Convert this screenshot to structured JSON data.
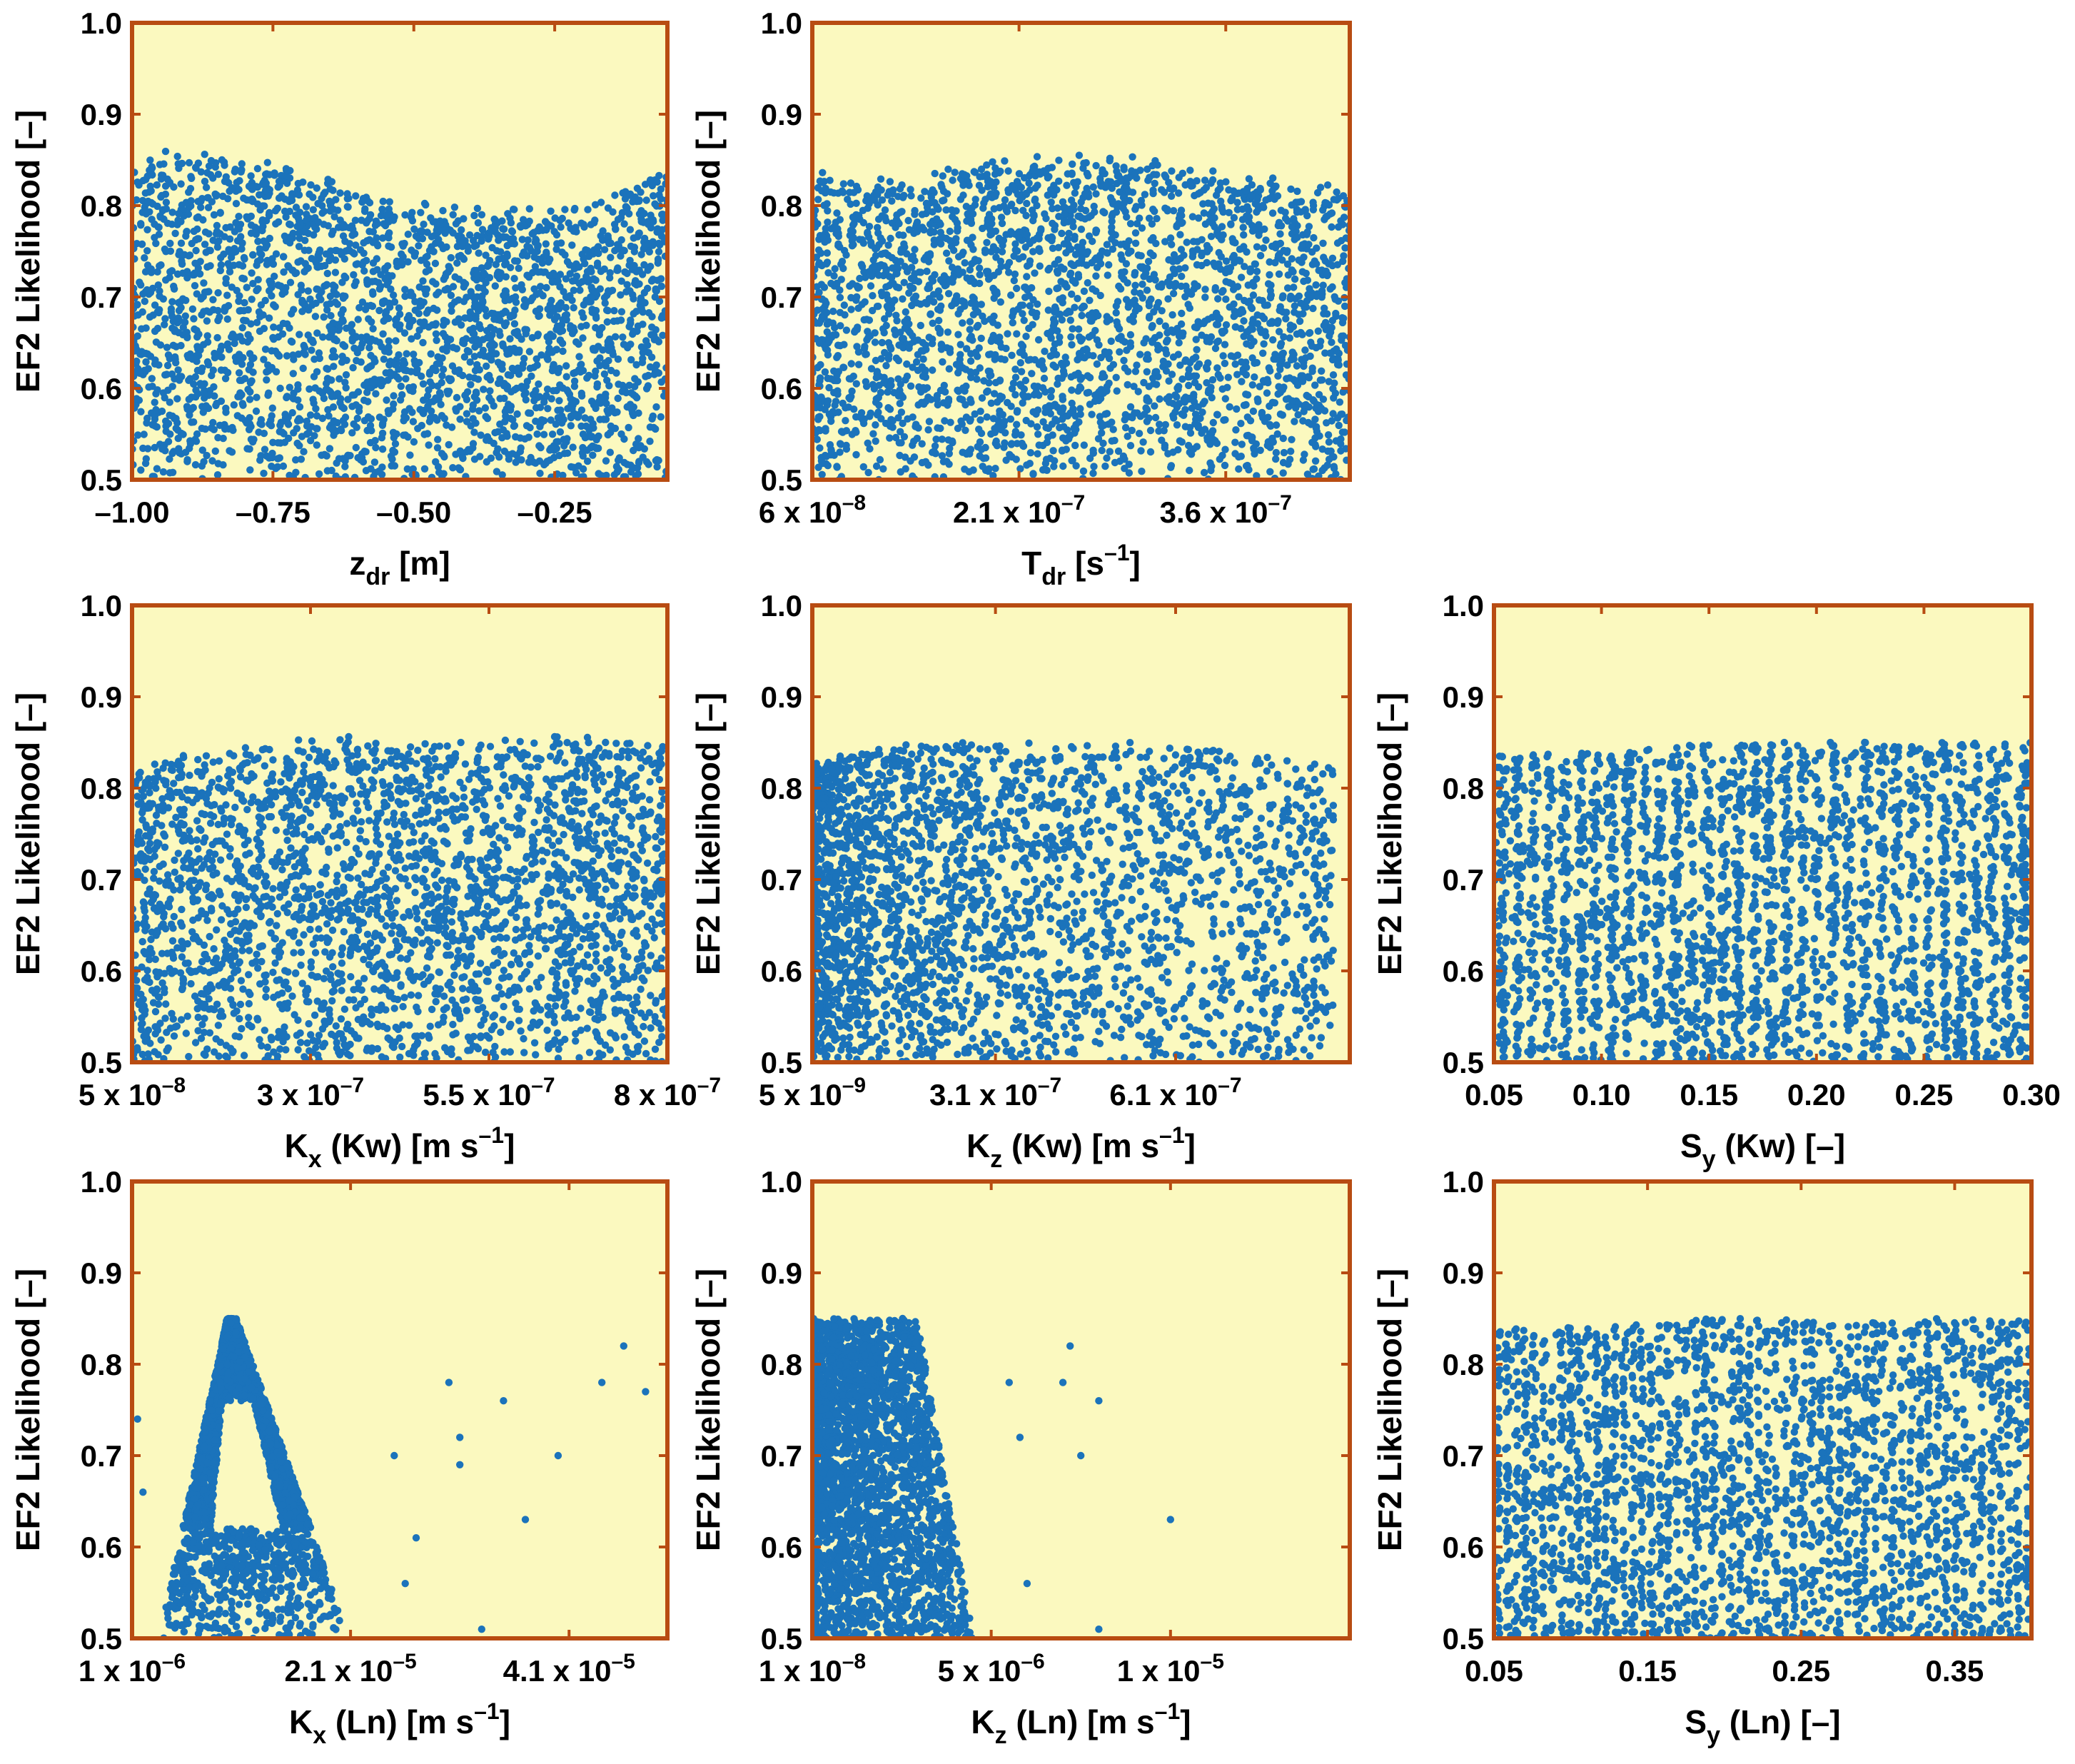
{
  "figure": {
    "style": {
      "plot_background": "#fbf9bf",
      "frame_color": "#b84c12",
      "marker_color": "#1b73bb"
    }
  },
  "chart_data": [
    {
      "id": "zdr",
      "type": "scatter",
      "ylabel": "EF2 Likelihood [–]",
      "ylim": [
        0.5,
        1.0
      ],
      "y_ticks": [
        "0.5",
        "0.6",
        "0.7",
        "0.8",
        "0.9",
        "1.0"
      ],
      "xlabel_main": "z",
      "xlabel_sub": "dr",
      "xlabel_after": " [m]",
      "xlim": [
        -1.0,
        -0.05
      ],
      "x_ticks": [
        {
          "value": -1.0,
          "label": "–1.00"
        },
        {
          "value": -0.75,
          "label": "–0.75"
        },
        {
          "value": -0.5,
          "label": "–0.50"
        },
        {
          "value": -0.25,
          "label": "–0.25"
        }
      ],
      "points": {
        "shape": "uniform",
        "count": 2800,
        "y_top_profile": [
          0.85,
          0.85,
          0.83,
          0.8,
          0.79,
          0.79,
          0.84
        ],
        "description": "dense uniform scatter, upper envelope ~0.78–0.85"
      }
    },
    {
      "id": "tdr",
      "type": "scatter",
      "ylabel": "EF2 Likelihood [–]",
      "ylim": [
        0.5,
        1.0
      ],
      "y_ticks": [
        "0.5",
        "0.6",
        "0.7",
        "0.8",
        "0.9",
        "1.0"
      ],
      "xlabel_main": "T",
      "xlabel_sub": "dr",
      "xlabel_after": " [s",
      "xlabel_sup": "–1",
      "xlabel_end": "]",
      "xlim": [
        6e-08,
        4.5e-07
      ],
      "x_ticks": [
        {
          "value": 6e-08,
          "label": "6 x 10",
          "exp": "–8"
        },
        {
          "value": 2.1e-07,
          "label": "2.1 x 10",
          "exp": "–7"
        },
        {
          "value": 3.6e-07,
          "label": "3.6 x 10",
          "exp": "–7"
        }
      ],
      "points": {
        "shape": "uniform",
        "count": 2800,
        "y_top_profile": [
          0.83,
          0.83,
          0.85,
          0.85,
          0.83,
          0.81
        ],
        "description": "dense uniform scatter, upper envelope ~0.81–0.85"
      }
    },
    {
      "id": "kx_kw",
      "type": "scatter",
      "ylabel": "EF2 Likelihood [–]",
      "ylim": [
        0.5,
        1.0
      ],
      "y_ticks": [
        "0.5",
        "0.6",
        "0.7",
        "0.8",
        "0.9",
        "1.0"
      ],
      "xlabel_main": "K",
      "xlabel_sub": "x",
      "xlabel_after": " (Kw) [m s",
      "xlabel_sup": "–1",
      "xlabel_end": "]",
      "xlim": [
        5e-08,
        8e-07
      ],
      "x_ticks": [
        {
          "value": 5e-08,
          "label": "5 x 10",
          "exp": "–8"
        },
        {
          "value": 3e-07,
          "label": "3 x 10",
          "exp": "–7"
        },
        {
          "value": 5.5e-07,
          "label": "5.5 x 10",
          "exp": "–7"
        },
        {
          "value": 8e-07,
          "label": "8 x 10",
          "exp": "–7"
        }
      ],
      "points": {
        "shape": "uniform",
        "count": 2800,
        "y_top_profile": [
          0.82,
          0.84,
          0.85,
          0.85,
          0.85,
          0.85
        ],
        "description": "dense uniform scatter, upper envelope ~0.82–0.85"
      }
    },
    {
      "id": "kz_kw",
      "type": "scatter",
      "ylabel": "EF2 Likelihood [–]",
      "ylim": [
        0.5,
        1.0
      ],
      "y_ticks": [
        "0.5",
        "0.6",
        "0.7",
        "0.8",
        "0.9",
        "1.0"
      ],
      "xlabel_main": "K",
      "xlabel_sub": "z",
      "xlabel_after": " (Kw) [m s",
      "xlabel_sup": "–1",
      "xlabel_end": "]",
      "xlim": [
        5e-09,
        9e-07
      ],
      "x_ticks": [
        {
          "value": 5e-09,
          "label": "5 x 10",
          "exp": "–9"
        },
        {
          "value": 3.1e-07,
          "label": "3.1 x 10",
          "exp": "–7"
        },
        {
          "value": 6.1e-07,
          "label": "6.1 x 10",
          "exp": "–7"
        }
      ],
      "points": {
        "shape": "left_dense_decay",
        "count": 2800,
        "y_top_profile": [
          0.83,
          0.85,
          0.85,
          0.85,
          0.84,
          0.82
        ],
        "description": "densest at low Kz, thinning toward high Kz"
      }
    },
    {
      "id": "sy_kw",
      "type": "scatter",
      "ylabel": "EF2 Likelihood [–]",
      "ylim": [
        0.5,
        1.0
      ],
      "y_ticks": [
        "0.5",
        "0.6",
        "0.7",
        "0.8",
        "0.9",
        "1.0"
      ],
      "xlabel_main": "S",
      "xlabel_sub": "y",
      "xlabel_after": " (Kw) [–]",
      "xlim": [
        0.05,
        0.3
      ],
      "x_ticks": [
        {
          "value": 0.05,
          "label": "0.05"
        },
        {
          "value": 0.1,
          "label": "0.10"
        },
        {
          "value": 0.15,
          "label": "0.15"
        },
        {
          "value": 0.2,
          "label": "0.20"
        },
        {
          "value": 0.25,
          "label": "0.25"
        },
        {
          "value": 0.3,
          "label": "0.30"
        }
      ],
      "points": {
        "shape": "vertical_bands",
        "count": 2800,
        "bands": 34,
        "y_top_profile": [
          0.84,
          0.84,
          0.85,
          0.85,
          0.85,
          0.85
        ],
        "description": "scatter organized in vertical stripes"
      }
    },
    {
      "id": "kx_ln",
      "type": "scatter",
      "ylabel": "EF2 Likelihood [–]",
      "ylim": [
        0.5,
        1.0
      ],
      "y_ticks": [
        "0.5",
        "0.6",
        "0.7",
        "0.8",
        "0.9",
        "1.0"
      ],
      "xlabel_main": "K",
      "xlabel_sub": "x",
      "xlabel_after": " (Ln) [m s",
      "xlabel_sup": "–1",
      "xlabel_end": "]",
      "xlim": [
        1e-06,
        5e-05
      ],
      "x_ticks": [
        {
          "value": 1e-06,
          "label": "1 x 10",
          "exp": "–6"
        },
        {
          "value": 2.1e-05,
          "label": "2.1 x 10",
          "exp": "–5"
        },
        {
          "value": 4.1e-05,
          "label": "4.1 x 10",
          "exp": "–5"
        }
      ],
      "points": {
        "shape": "peak",
        "count": 2600,
        "peak_x": 1e-05,
        "peak_y": 0.85,
        "base_x_range": [
          3.5e-06,
          2.1e-05
        ],
        "hollow_center": true,
        "outliers": [
          {
            "x": 1.5e-06,
            "y": 0.74
          },
          {
            "x": 2e-06,
            "y": 0.66
          },
          {
            "x": 2.5e-05,
            "y": 0.7
          },
          {
            "x": 2.6e-05,
            "y": 0.56
          },
          {
            "x": 2.7e-05,
            "y": 0.61
          },
          {
            "x": 3e-05,
            "y": 0.78
          },
          {
            "x": 3.1e-05,
            "y": 0.72
          },
          {
            "x": 3.1e-05,
            "y": 0.69
          },
          {
            "x": 3.3e-05,
            "y": 0.51
          },
          {
            "x": 3.5e-05,
            "y": 0.76
          },
          {
            "x": 3.7e-05,
            "y": 0.63
          },
          {
            "x": 4e-05,
            "y": 0.7
          },
          {
            "x": 4.4e-05,
            "y": 0.78
          },
          {
            "x": 4.6e-05,
            "y": 0.82
          },
          {
            "x": 4.8e-05,
            "y": 0.77
          }
        ]
      }
    },
    {
      "id": "kz_ln",
      "type": "scatter",
      "ylabel": "EF2 Likelihood [–]",
      "ylim": [
        0.5,
        1.0
      ],
      "y_ticks": [
        "0.5",
        "0.6",
        "0.7",
        "0.8",
        "0.9",
        "1.0"
      ],
      "xlabel_main": "K",
      "xlabel_sub": "z",
      "xlabel_after": " (Ln) [m s",
      "xlabel_sup": "–1",
      "xlabel_end": "]",
      "xlim": [
        1e-08,
        1.5e-05
      ],
      "x_ticks": [
        {
          "value": 1e-08,
          "label": "1 x 10",
          "exp": "–8"
        },
        {
          "value": 5e-06,
          "label": "5 x 10",
          "exp": "–6"
        },
        {
          "value": 1e-05,
          "label": "1 x 10",
          "exp": "–5"
        }
      ],
      "points": {
        "shape": "left_block",
        "count": 2600,
        "block_x_range": [
          1e-08,
          4.5e-06
        ],
        "block_y_top": 0.85,
        "outliers": [
          {
            "x": 5.5e-06,
            "y": 0.78
          },
          {
            "x": 5.8e-06,
            "y": 0.72
          },
          {
            "x": 6e-06,
            "y": 0.56
          },
          {
            "x": 7e-06,
            "y": 0.78
          },
          {
            "x": 7.2e-06,
            "y": 0.82
          },
          {
            "x": 7.5e-06,
            "y": 0.7
          },
          {
            "x": 8e-06,
            "y": 0.76
          },
          {
            "x": 8e-06,
            "y": 0.51
          },
          {
            "x": 1e-05,
            "y": 0.63
          }
        ]
      }
    },
    {
      "id": "sy_ln",
      "type": "scatter",
      "ylabel": "EF2 Likelihood [–]",
      "ylim": [
        0.5,
        1.0
      ],
      "y_ticks": [
        "0.5",
        "0.6",
        "0.7",
        "0.8",
        "0.9",
        "1.0"
      ],
      "xlabel_main": "S",
      "xlabel_sub": "y",
      "xlabel_after": " (Ln) [–]",
      "xlim": [
        0.05,
        0.4
      ],
      "x_ticks": [
        {
          "value": 0.05,
          "label": "0.05"
        },
        {
          "value": 0.15,
          "label": "0.15"
        },
        {
          "value": 0.25,
          "label": "0.25"
        },
        {
          "value": 0.35,
          "label": "0.35"
        }
      ],
      "points": {
        "shape": "vertical_bands",
        "count": 2800,
        "bands": 60,
        "y_top_profile": [
          0.84,
          0.84,
          0.85,
          0.85,
          0.85,
          0.85
        ],
        "description": "dense scatter with faint vertical striping"
      }
    }
  ]
}
